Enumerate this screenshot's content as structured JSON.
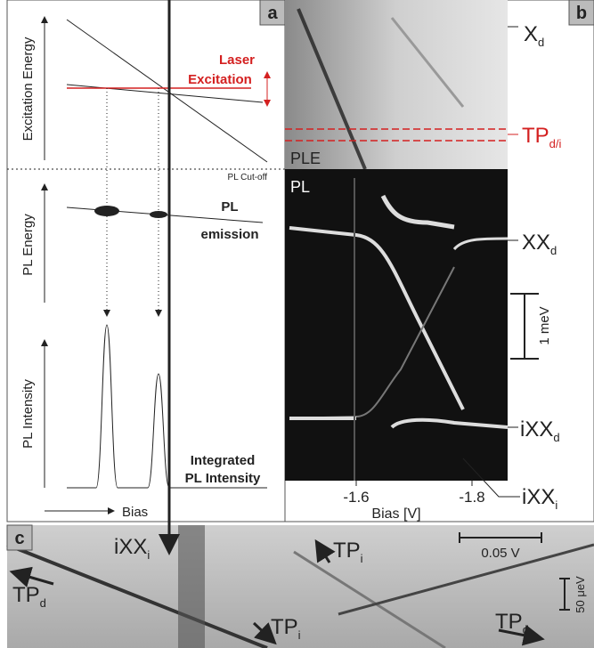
{
  "panel_a": {
    "label": "a",
    "excitation_axis": "Excitation Energy",
    "laser_line1": "Laser",
    "laser_line2": "Excitation",
    "cutoff": "PL Cut-off",
    "pl_energy_axis": "PL Energy",
    "emission_line1": "PL",
    "emission_line2": "emission",
    "intensity_axis": "PL Intensity",
    "integrated_line1": "Integrated",
    "integrated_line2": "PL Intensity",
    "bias": "Bias"
  },
  "panel_b": {
    "label": "b",
    "ple": "PLE",
    "pl": "PL",
    "xd": {
      "main": "X",
      "sub": "d"
    },
    "tp": {
      "main": "TP",
      "sub": "d/i"
    },
    "xxd": {
      "main": "XX",
      "sub": "d"
    },
    "scale": "1 meV",
    "ixxd": {
      "main": "iXX",
      "sub": "d"
    },
    "ixxi": {
      "main": "iXX",
      "sub": "i"
    },
    "xticks": [
      "-1.6",
      "-1.8"
    ],
    "xlabel": "Bias [V]"
  },
  "panel_c": {
    "label": "c",
    "ixxi": {
      "main": "iXX",
      "sub": "i"
    },
    "tpi_top": {
      "main": "TP",
      "sub": "i"
    },
    "scale_v": "0.05 V",
    "tpd_left": {
      "main": "TP",
      "sub": "d"
    },
    "scale_e": "50 μeV",
    "tpi_bottom": {
      "main": "TP",
      "sub": "i"
    },
    "tpd_right": {
      "main": "TP",
      "sub": "d"
    }
  }
}
